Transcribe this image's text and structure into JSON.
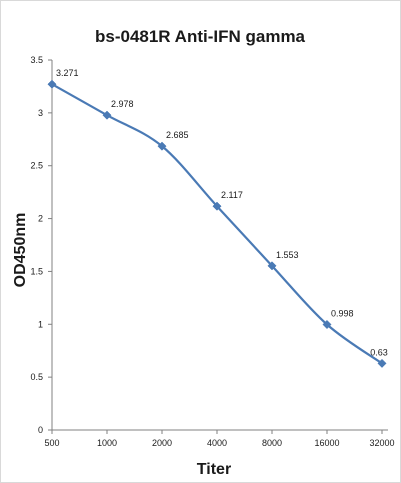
{
  "chart_data": {
    "type": "line",
    "title": "bs-0481R  Anti-IFN gamma",
    "xlabel": "Titer",
    "ylabel": "OD450nm",
    "categories": [
      "500",
      "1000",
      "2000",
      "4000",
      "8000",
      "16000",
      "32000"
    ],
    "series": [
      {
        "values": [
          3.271,
          2.978,
          2.685,
          2.117,
          1.553,
          0.998,
          0.63
        ],
        "labels": [
          "3.271",
          "2.978",
          "2.685",
          "2.117",
          "1.553",
          "0.998",
          "0.63"
        ]
      }
    ],
    "yticks": [
      "0",
      "0.5",
      "1",
      "1.5",
      "2",
      "2.5",
      "3",
      "3.5"
    ],
    "ylim": [
      0,
      3.5
    ],
    "grid": false,
    "legend": "none",
    "line_color": "#4a7ab5"
  }
}
